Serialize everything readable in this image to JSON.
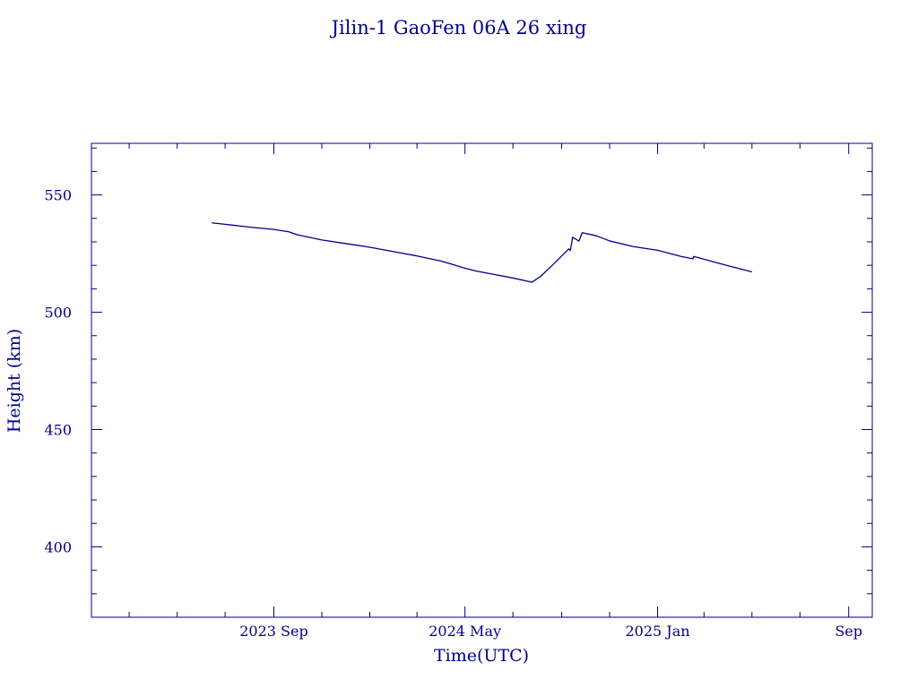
{
  "chart_data": {
    "type": "line",
    "title": "Jilin-1 GaoFen 06A 26 xing",
    "xlabel": "Time(UTC)",
    "ylabel": "Height (km)",
    "xlim": [
      "2023-01-12",
      "2025-10-01"
    ],
    "ylim": [
      370,
      572
    ],
    "grid": false,
    "line_color": "#00008b",
    "x_major_ticks": [
      {
        "date": "2023-09-01",
        "label": "2023 Sep"
      },
      {
        "date": "2024-05-01",
        "label": "2024 May"
      },
      {
        "date": "2025-01-01",
        "label": "2025 Jan"
      },
      {
        "date": "2025-09-01",
        "label": "Sep"
      }
    ],
    "x_minor_ticks": [
      "2023-03-01",
      "2023-05-01",
      "2023-07-01",
      "2023-11-01",
      "2024-01-01",
      "2024-03-01",
      "2024-07-01",
      "2024-09-01",
      "2024-11-01",
      "2025-03-01",
      "2025-05-01",
      "2025-07-01"
    ],
    "y_major_ticks": [
      {
        "value": 400,
        "label": "400"
      },
      {
        "value": 450,
        "label": "450"
      },
      {
        "value": 500,
        "label": "500"
      },
      {
        "value": 550,
        "label": "550"
      }
    ],
    "y_minor_ticks": [
      380,
      390,
      410,
      420,
      430,
      440,
      460,
      470,
      480,
      490,
      510,
      520,
      530,
      540,
      560,
      570
    ],
    "series": [
      {
        "points": [
          [
            "2023-06-14",
            538.1
          ],
          [
            "2023-07-01",
            537.5
          ],
          [
            "2023-08-01",
            536.3
          ],
          [
            "2023-09-01",
            535.3
          ],
          [
            "2023-09-20",
            534.3
          ],
          [
            "2023-10-01",
            533.0
          ],
          [
            "2023-11-01",
            530.8
          ],
          [
            "2023-12-01",
            529.3
          ],
          [
            "2024-01-01",
            527.7
          ],
          [
            "2024-02-01",
            525.8
          ],
          [
            "2024-03-01",
            524.0
          ],
          [
            "2024-04-01",
            521.8
          ],
          [
            "2024-05-01",
            518.8
          ],
          [
            "2024-05-15",
            517.6
          ],
          [
            "2024-06-01",
            516.5
          ],
          [
            "2024-07-01",
            514.6
          ],
          [
            "2024-07-25",
            512.8
          ],
          [
            "2024-08-05",
            515.2
          ],
          [
            "2024-08-20",
            520.0
          ],
          [
            "2024-09-01",
            524.0
          ],
          [
            "2024-09-10",
            527.0
          ],
          [
            "2024-09-12",
            526.3
          ],
          [
            "2024-09-15",
            532.0
          ],
          [
            "2024-09-23",
            530.3
          ],
          [
            "2024-09-27",
            533.9
          ],
          [
            "2024-10-15",
            532.6
          ],
          [
            "2024-11-01",
            530.4
          ],
          [
            "2024-12-01",
            528.0
          ],
          [
            "2025-01-01",
            526.4
          ],
          [
            "2025-02-01",
            523.7
          ],
          [
            "2025-02-15",
            522.8
          ],
          [
            "2025-02-16",
            523.8
          ],
          [
            "2025-03-15",
            521.3
          ],
          [
            "2025-04-01",
            519.8
          ],
          [
            "2025-05-01",
            517.2
          ]
        ]
      }
    ]
  }
}
